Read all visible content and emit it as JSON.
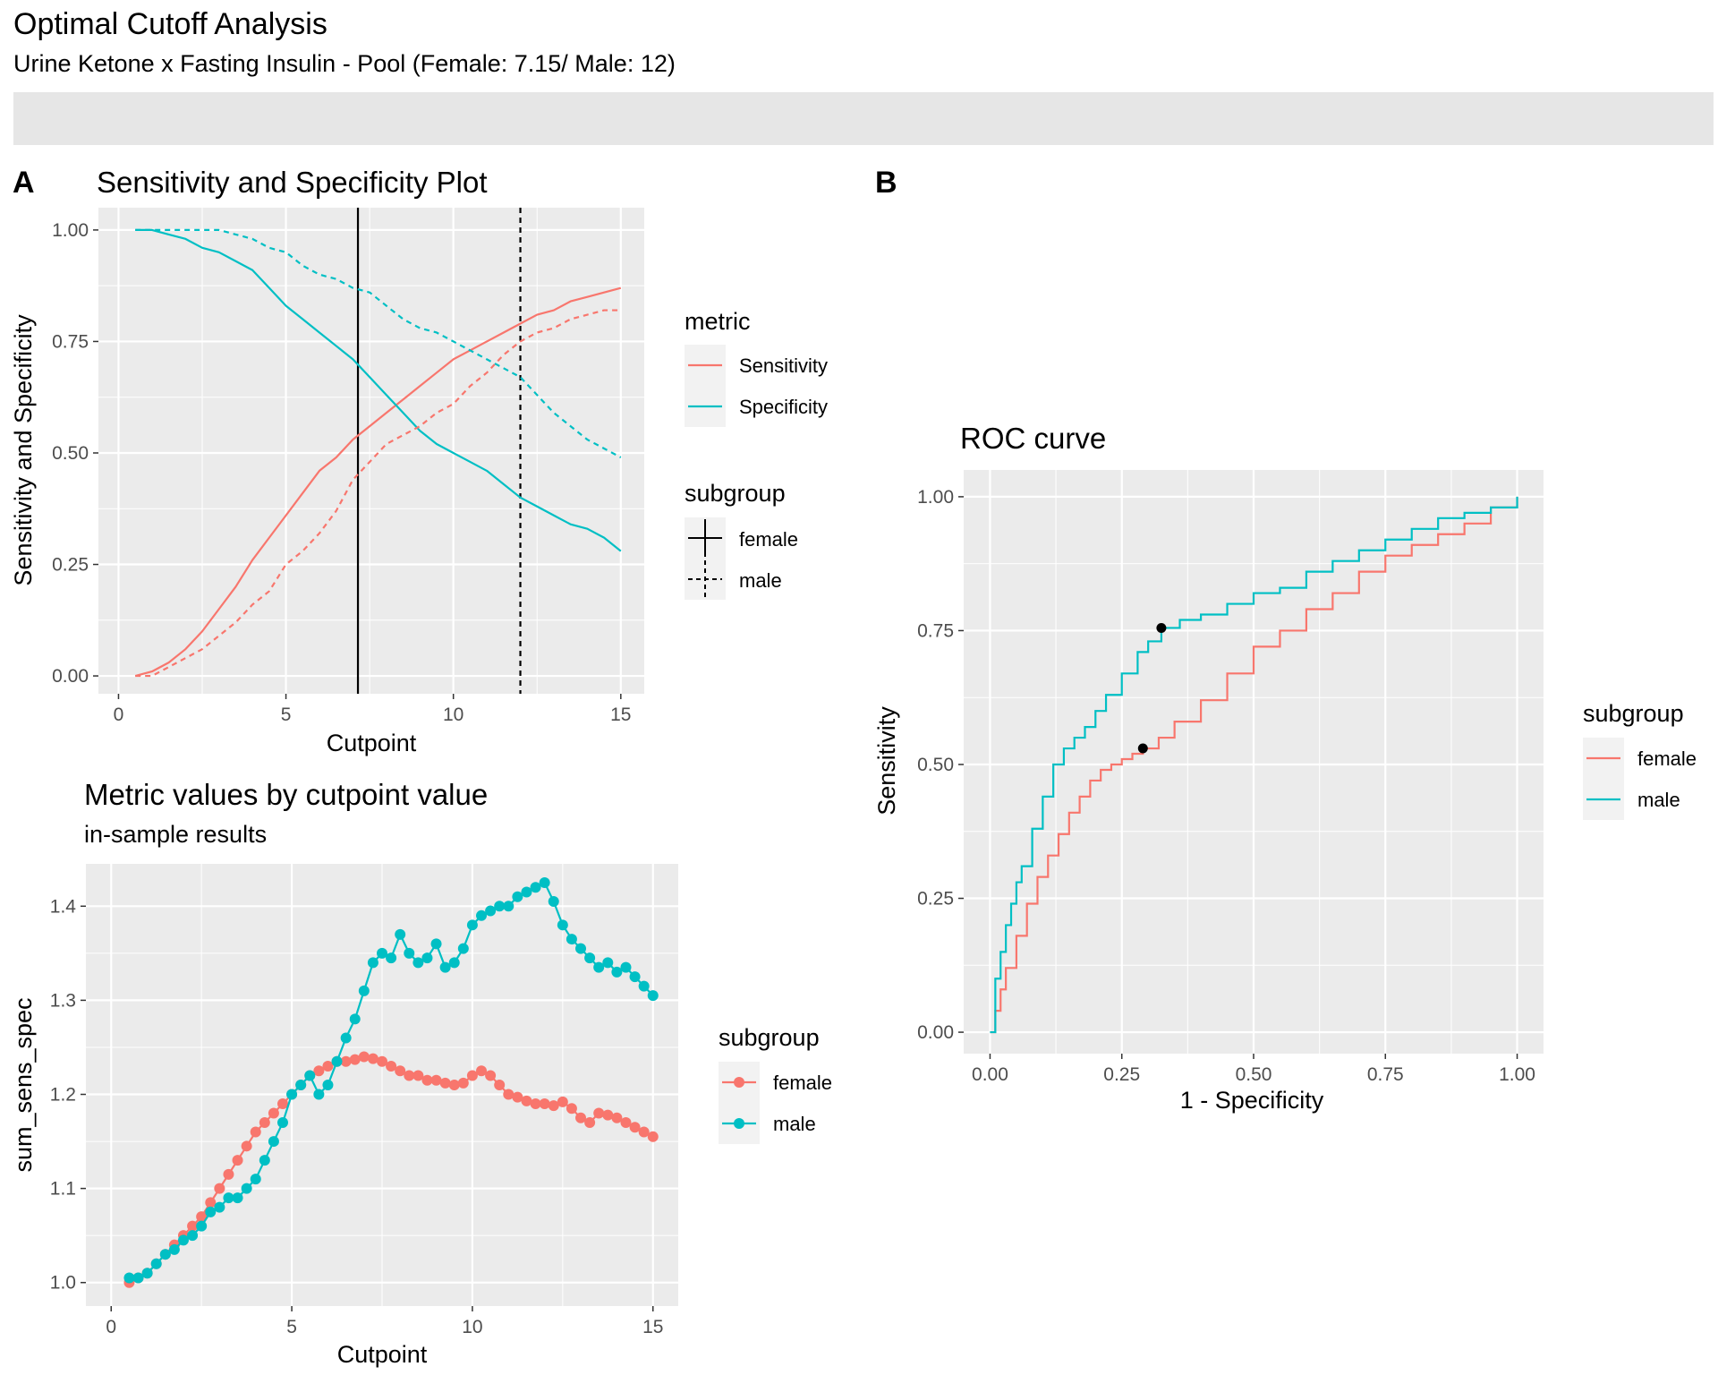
{
  "header": {
    "title": "Optimal Cutoff Analysis",
    "subtitle": "Urine Ketone x Fasting Insulin - Pool  (Female: 7.15/ Male: 12)"
  },
  "panel_labels": {
    "a": "A",
    "b": "B"
  },
  "colors": {
    "female": "#F8766D",
    "male": "#00BFC4",
    "panel_bg": "#EBEBEB",
    "strip_bg": "#E6E6E6",
    "grid": "#FFFFFF"
  },
  "chart_data": [
    {
      "id": "sens_spec",
      "type": "line",
      "title": "Sensitivity and Specificity Plot",
      "xlabel": "Cutpoint",
      "ylabel": "Sensitivity and Specificity",
      "xlim": [
        -0.6,
        15.7
      ],
      "ylim": [
        -0.04,
        1.05
      ],
      "xticks": [
        0,
        5,
        10,
        15
      ],
      "xtick_labels": [
        "0",
        "5",
        "10",
        "15"
      ],
      "yticks": [
        0,
        0.25,
        0.5,
        0.75,
        1
      ],
      "ytick_labels": [
        "0.00",
        "0.25",
        "0.50",
        "0.75",
        "1.00"
      ],
      "cutoffs": [
        {
          "subgroup": "female",
          "x": 7.15,
          "linetype": "solid"
        },
        {
          "subgroup": "male",
          "x": 12,
          "linetype": "dashed"
        }
      ],
      "legend_metric": {
        "title": "metric",
        "items": [
          "Sensitivity",
          "Specificity"
        ]
      },
      "legend_subgroup": {
        "title": "subgroup",
        "items": [
          "female",
          "male"
        ]
      },
      "series": [
        {
          "metric": "Sensitivity",
          "subgroup": "female",
          "linetype": "solid",
          "x": [
            0.5,
            1,
            1.5,
            2,
            2.5,
            3,
            3.5,
            4,
            4.5,
            5,
            5.5,
            6,
            6.5,
            7,
            7.5,
            8,
            8.5,
            9,
            9.5,
            10,
            10.5,
            11,
            11.5,
            12,
            12.5,
            13,
            13.5,
            14,
            14.5,
            15
          ],
          "y": [
            0.0,
            0.01,
            0.03,
            0.06,
            0.1,
            0.15,
            0.2,
            0.26,
            0.31,
            0.36,
            0.41,
            0.46,
            0.49,
            0.53,
            0.56,
            0.59,
            0.62,
            0.65,
            0.68,
            0.71,
            0.73,
            0.75,
            0.77,
            0.79,
            0.81,
            0.82,
            0.84,
            0.85,
            0.86,
            0.87
          ]
        },
        {
          "metric": "Specificity",
          "subgroup": "female",
          "linetype": "solid",
          "x": [
            0.5,
            1,
            1.5,
            2,
            2.5,
            3,
            3.5,
            4,
            4.5,
            5,
            5.5,
            6,
            6.5,
            7,
            7.5,
            8,
            8.5,
            9,
            9.5,
            10,
            10.5,
            11,
            11.5,
            12,
            12.5,
            13,
            13.5,
            14,
            14.5,
            15
          ],
          "y": [
            1.0,
            1.0,
            0.99,
            0.98,
            0.96,
            0.95,
            0.93,
            0.91,
            0.87,
            0.83,
            0.8,
            0.77,
            0.74,
            0.71,
            0.67,
            0.63,
            0.59,
            0.55,
            0.52,
            0.5,
            0.48,
            0.46,
            0.43,
            0.4,
            0.38,
            0.36,
            0.34,
            0.33,
            0.31,
            0.28
          ]
        },
        {
          "metric": "Sensitivity",
          "subgroup": "male",
          "linetype": "dashed",
          "x": [
            0.5,
            1,
            1.5,
            2,
            2.5,
            3,
            3.5,
            4,
            4.5,
            5,
            5.5,
            6,
            6.5,
            7,
            7.5,
            8,
            8.5,
            9,
            9.5,
            10,
            10.5,
            11,
            11.5,
            12,
            12.5,
            13,
            13.5,
            14,
            14.5,
            15
          ],
          "y": [
            0.0,
            0.0,
            0.02,
            0.04,
            0.06,
            0.09,
            0.12,
            0.16,
            0.19,
            0.25,
            0.28,
            0.32,
            0.37,
            0.44,
            0.48,
            0.52,
            0.54,
            0.56,
            0.59,
            0.61,
            0.65,
            0.68,
            0.72,
            0.75,
            0.77,
            0.78,
            0.8,
            0.81,
            0.82,
            0.82
          ]
        },
        {
          "metric": "Specificity",
          "subgroup": "male",
          "linetype": "dashed",
          "x": [
            0.5,
            1,
            1.5,
            2,
            2.5,
            3,
            3.5,
            4,
            4.5,
            5,
            5.5,
            6,
            6.5,
            7,
            7.5,
            8,
            8.5,
            9,
            9.5,
            10,
            10.5,
            11,
            11.5,
            12,
            12.5,
            13,
            13.5,
            14,
            14.5,
            15
          ],
          "y": [
            1.0,
            1.0,
            1.0,
            1.0,
            1.0,
            1.0,
            0.99,
            0.98,
            0.96,
            0.95,
            0.92,
            0.9,
            0.89,
            0.87,
            0.86,
            0.83,
            0.8,
            0.78,
            0.77,
            0.75,
            0.73,
            0.71,
            0.69,
            0.67,
            0.63,
            0.59,
            0.56,
            0.53,
            0.51,
            0.49
          ]
        }
      ]
    },
    {
      "id": "metric_values",
      "type": "scatter",
      "title": "Metric values by cutpoint value",
      "subtitle": "in-sample results",
      "xlabel": "Cutpoint",
      "ylabel": "sum_sens_spec",
      "xlim": [
        -0.7,
        15.7
      ],
      "ylim": [
        0.975,
        1.445
      ],
      "xticks": [
        0,
        5,
        10,
        15
      ],
      "xtick_labels": [
        "0",
        "5",
        "10",
        "15"
      ],
      "yticks": [
        1.0,
        1.1,
        1.2,
        1.3,
        1.4
      ],
      "ytick_labels": [
        "1.0",
        "1.1",
        "1.2",
        "1.3",
        "1.4"
      ],
      "legend": {
        "title": "subgroup",
        "items": [
          "female",
          "male"
        ]
      },
      "series": [
        {
          "name": "female",
          "x": [
            0.5,
            0.75,
            1,
            1.25,
            1.5,
            1.75,
            2,
            2.25,
            2.5,
            2.75,
            3,
            3.25,
            3.5,
            3.75,
            4,
            4.25,
            4.5,
            4.75,
            5,
            5.25,
            5.5,
            5.75,
            6,
            6.25,
            6.5,
            6.75,
            7,
            7.25,
            7.5,
            7.75,
            8,
            8.25,
            8.5,
            8.75,
            9,
            9.25,
            9.5,
            9.75,
            10,
            10.25,
            10.5,
            10.75,
            11,
            11.25,
            11.5,
            11.75,
            12,
            12.25,
            12.5,
            12.75,
            13,
            13.25,
            13.5,
            13.75,
            14,
            14.25,
            14.5,
            14.75,
            15
          ],
          "y": [
            1.0,
            1.005,
            1.01,
            1.02,
            1.03,
            1.04,
            1.05,
            1.06,
            1.07,
            1.085,
            1.1,
            1.115,
            1.13,
            1.145,
            1.16,
            1.17,
            1.18,
            1.19,
            1.2,
            1.21,
            1.22,
            1.225,
            1.23,
            1.235,
            1.235,
            1.237,
            1.24,
            1.238,
            1.235,
            1.23,
            1.225,
            1.22,
            1.22,
            1.215,
            1.215,
            1.212,
            1.21,
            1.212,
            1.22,
            1.225,
            1.22,
            1.21,
            1.2,
            1.197,
            1.193,
            1.19,
            1.19,
            1.188,
            1.192,
            1.185,
            1.175,
            1.17,
            1.18,
            1.178,
            1.175,
            1.17,
            1.165,
            1.16,
            1.155
          ]
        },
        {
          "name": "male",
          "x": [
            0.5,
            0.75,
            1,
            1.25,
            1.5,
            1.75,
            2,
            2.25,
            2.5,
            2.75,
            3,
            3.25,
            3.5,
            3.75,
            4,
            4.25,
            4.5,
            4.75,
            5,
            5.25,
            5.5,
            5.75,
            6,
            6.25,
            6.5,
            6.75,
            7,
            7.25,
            7.5,
            7.75,
            8,
            8.25,
            8.5,
            8.75,
            9,
            9.25,
            9.5,
            9.75,
            10,
            10.25,
            10.5,
            10.75,
            11,
            11.25,
            11.5,
            11.75,
            12,
            12.25,
            12.5,
            12.75,
            13,
            13.25,
            13.5,
            13.75,
            14,
            14.25,
            14.5,
            14.75,
            15
          ],
          "y": [
            1.005,
            1.005,
            1.01,
            1.02,
            1.03,
            1.035,
            1.045,
            1.05,
            1.06,
            1.075,
            1.08,
            1.09,
            1.09,
            1.1,
            1.11,
            1.13,
            1.15,
            1.17,
            1.2,
            1.21,
            1.22,
            1.2,
            1.21,
            1.235,
            1.26,
            1.28,
            1.31,
            1.34,
            1.35,
            1.345,
            1.37,
            1.35,
            1.34,
            1.345,
            1.36,
            1.335,
            1.34,
            1.355,
            1.38,
            1.39,
            1.395,
            1.4,
            1.4,
            1.41,
            1.415,
            1.42,
            1.425,
            1.405,
            1.38,
            1.365,
            1.355,
            1.345,
            1.335,
            1.34,
            1.33,
            1.335,
            1.325,
            1.315,
            1.305
          ]
        }
      ]
    },
    {
      "id": "roc",
      "type": "line",
      "title": "ROC curve",
      "xlabel": "1 - Specificity",
      "ylabel": "Sensitivity",
      "xlim": [
        -0.05,
        1.05
      ],
      "ylim": [
        -0.04,
        1.05
      ],
      "xticks": [
        0,
        0.25,
        0.5,
        0.75,
        1
      ],
      "xtick_labels": [
        "0.00",
        "0.25",
        "0.50",
        "0.75",
        "1.00"
      ],
      "yticks": [
        0,
        0.25,
        0.5,
        0.75,
        1
      ],
      "ytick_labels": [
        "0.00",
        "0.25",
        "0.50",
        "0.75",
        "1.00"
      ],
      "legend": {
        "title": "subgroup",
        "items": [
          "female",
          "male"
        ]
      },
      "optimal_points": [
        {
          "subgroup": "female",
          "x": 0.29,
          "y": 0.53
        },
        {
          "subgroup": "male",
          "x": 0.325,
          "y": 0.755
        }
      ],
      "series": [
        {
          "name": "female",
          "x": [
            0,
            0.01,
            0.02,
            0.03,
            0.05,
            0.07,
            0.09,
            0.11,
            0.13,
            0.15,
            0.17,
            0.19,
            0.21,
            0.23,
            0.25,
            0.27,
            0.29,
            0.32,
            0.35,
            0.4,
            0.45,
            0.5,
            0.55,
            0.6,
            0.65,
            0.7,
            0.75,
            0.8,
            0.85,
            0.9,
            0.95,
            1
          ],
          "y": [
            0,
            0.04,
            0.08,
            0.12,
            0.18,
            0.24,
            0.29,
            0.33,
            0.37,
            0.41,
            0.44,
            0.47,
            0.49,
            0.5,
            0.51,
            0.52,
            0.53,
            0.55,
            0.58,
            0.62,
            0.67,
            0.72,
            0.75,
            0.79,
            0.82,
            0.86,
            0.89,
            0.91,
            0.93,
            0.95,
            0.98,
            1
          ]
        },
        {
          "name": "male",
          "x": [
            0,
            0.01,
            0.02,
            0.03,
            0.04,
            0.05,
            0.06,
            0.08,
            0.1,
            0.12,
            0.14,
            0.16,
            0.18,
            0.2,
            0.22,
            0.25,
            0.28,
            0.3,
            0.325,
            0.36,
            0.4,
            0.45,
            0.5,
            0.55,
            0.6,
            0.65,
            0.7,
            0.75,
            0.8,
            0.85,
            0.9,
            0.95,
            1
          ],
          "y": [
            0,
            0.1,
            0.15,
            0.2,
            0.24,
            0.28,
            0.31,
            0.38,
            0.44,
            0.5,
            0.53,
            0.55,
            0.57,
            0.6,
            0.63,
            0.67,
            0.71,
            0.73,
            0.755,
            0.77,
            0.78,
            0.8,
            0.82,
            0.83,
            0.86,
            0.88,
            0.9,
            0.92,
            0.94,
            0.96,
            0.97,
            0.98,
            1
          ]
        }
      ]
    }
  ]
}
